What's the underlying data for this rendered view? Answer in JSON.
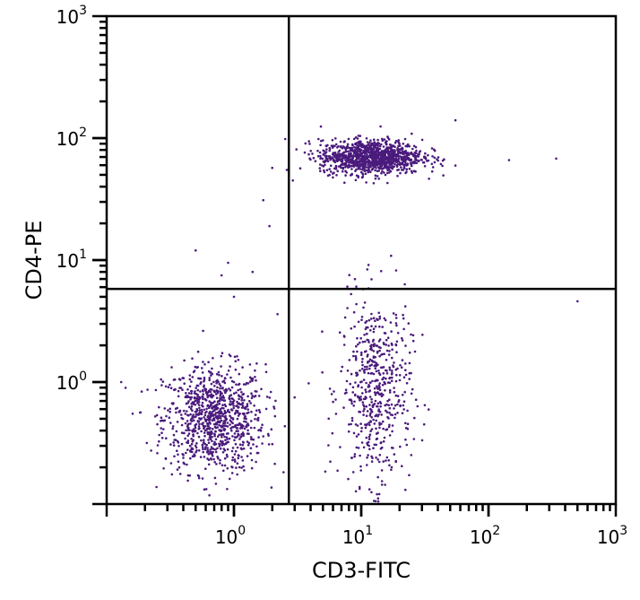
{
  "chart_data": {
    "type": "scatter",
    "title": "",
    "xlabel": "CD3-FITC",
    "ylabel": "CD4-PE",
    "x_scale": "log",
    "y_scale": "log",
    "xlim": [
      0.1,
      1000
    ],
    "ylim": [
      0.1,
      1000
    ],
    "x_ticks": [
      {
        "value": 1,
        "base": "10",
        "exp": "0"
      },
      {
        "value": 10,
        "base": "10",
        "exp": "1"
      },
      {
        "value": 100,
        "base": "10",
        "exp": "2"
      },
      {
        "value": 1000,
        "base": "10",
        "exp": "3"
      }
    ],
    "y_ticks": [
      {
        "value": 1,
        "base": "10",
        "exp": "0"
      },
      {
        "value": 10,
        "base": "10",
        "exp": "1"
      },
      {
        "value": 100,
        "base": "10",
        "exp": "2"
      },
      {
        "value": 1000,
        "base": "10",
        "exp": "3"
      }
    ],
    "quadrant_gates": {
      "x": 2.7,
      "y": 5.8
    },
    "grid": false,
    "point_color": "#4a1a7c",
    "populations": [
      {
        "quadrant": "lower-left",
        "center": [
          0.7,
          0.5
        ],
        "log_spread": [
          0.2,
          0.22
        ],
        "count": 950
      },
      {
        "quadrant": "lower-right",
        "center": [
          13,
          0.85
        ],
        "log_spread": [
          0.14,
          0.38
        ],
        "count": 550
      },
      {
        "quadrant": "upper-right",
        "center": [
          12,
          70
        ],
        "log_spread": [
          0.2,
          0.07
        ],
        "count": 1100
      }
    ],
    "outliers": [
      [
        0.5,
        12
      ],
      [
        0.8,
        7.5
      ],
      [
        0.9,
        9.5
      ],
      [
        1.4,
        8
      ],
      [
        1.7,
        31
      ],
      [
        2.0,
        57
      ],
      [
        1.9,
        19
      ],
      [
        1.0,
        5.0
      ],
      [
        2.2,
        3.6
      ],
      [
        145,
        66
      ],
      [
        340,
        68
      ],
      [
        55,
        140
      ],
      [
        500,
        4.6
      ],
      [
        0.13,
        1.0
      ],
      [
        0.16,
        0.55
      ],
      [
        2.9,
        45
      ]
    ]
  }
}
